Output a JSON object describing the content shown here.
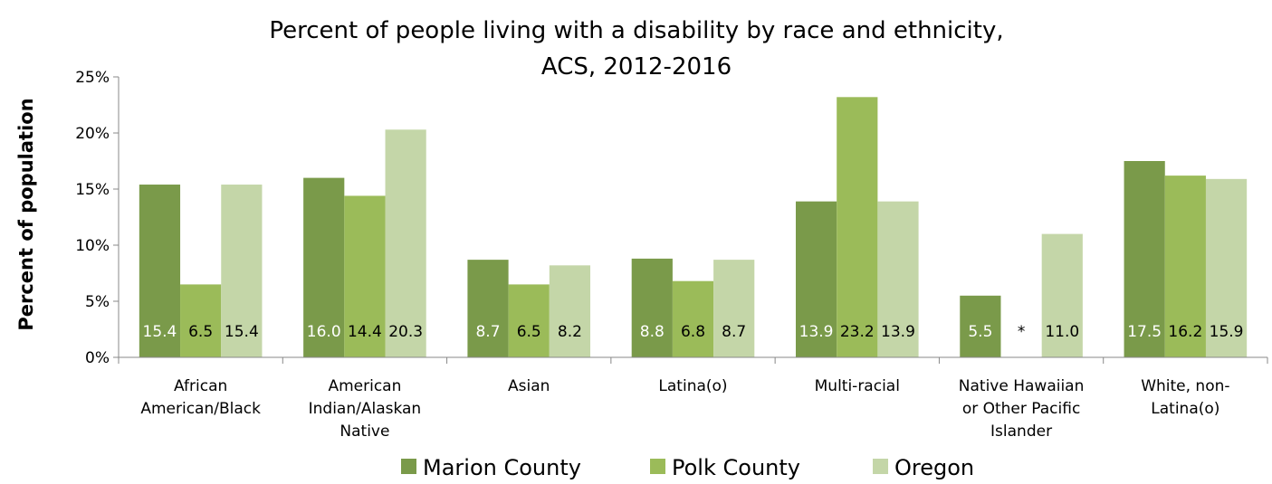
{
  "chart_data": {
    "type": "bar",
    "title": [
      "Percent of people living with a disability by race and ethnicity,",
      "ACS, 2012-2016"
    ],
    "xlabel": "",
    "ylabel": "Percent of population",
    "ylim": [
      0,
      25
    ],
    "yticks": [
      "0%",
      "5%",
      "10%",
      "15%",
      "20%",
      "25%"
    ],
    "categories": [
      [
        "African",
        "American/Black"
      ],
      [
        "American",
        "Indian/Alaskan",
        "Native"
      ],
      [
        "Asian"
      ],
      [
        "Latina(o)"
      ],
      [
        "Multi-racial"
      ],
      [
        "Native Hawaiian",
        "or Other Pacific",
        "Islander"
      ],
      [
        "White, non-",
        "Latina(o)"
      ]
    ],
    "series": [
      {
        "name": "Marion County",
        "color": "#7a9a4a",
        "label_color": "#ffffff",
        "values": [
          15.4,
          16.0,
          8.7,
          8.8,
          13.9,
          5.5,
          17.5
        ],
        "labels": [
          "15.4",
          "16.0",
          "8.7",
          "8.8",
          "13.9",
          "5.5",
          "17.5"
        ]
      },
      {
        "name": "Polk County",
        "color": "#9bbb59",
        "label_color": "#000000",
        "values": [
          6.5,
          14.4,
          6.5,
          6.8,
          23.2,
          null,
          16.2
        ],
        "labels": [
          "6.5",
          "14.4",
          "6.5",
          "6.8",
          "23.2",
          "*",
          "16.2"
        ]
      },
      {
        "name": "Oregon",
        "color": "#c4d6a8",
        "label_color": "#000000",
        "values": [
          15.4,
          20.3,
          8.2,
          8.7,
          13.9,
          11.0,
          15.9
        ],
        "labels": [
          "15.4",
          "20.3",
          "8.2",
          "8.7",
          "13.9",
          "11.0",
          "15.9"
        ]
      }
    ],
    "legend_position": "bottom",
    "grid": false
  }
}
